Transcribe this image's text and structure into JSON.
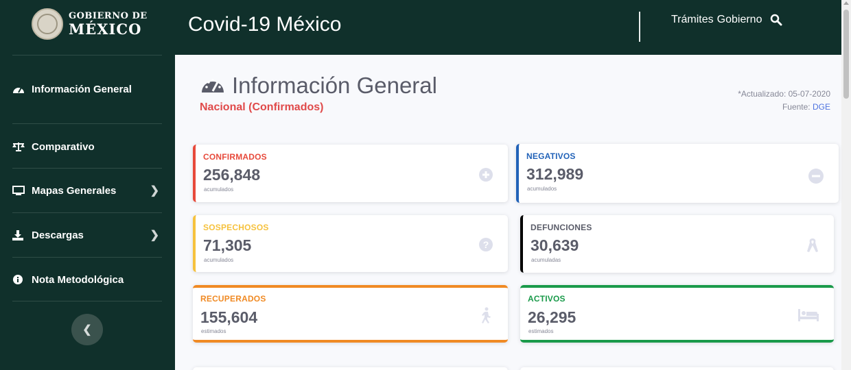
{
  "logo": {
    "line1": "GOBIERNO DE",
    "line2": "MÉXICO"
  },
  "sidebar": {
    "items": [
      {
        "label": "Información General",
        "icon": "tachometer-icon"
      },
      {
        "label": "Comparativo",
        "icon": "balance-scale-icon"
      },
      {
        "label": "Mapas Generales",
        "icon": "monitor-icon",
        "has_submenu": true
      },
      {
        "label": "Descargas",
        "icon": "download-icon",
        "has_submenu": true
      },
      {
        "label": "Nota Metodológica",
        "icon": "info-circle-icon"
      }
    ],
    "toggle_icon": "chevron-left-icon"
  },
  "header": {
    "title": "Covid-19 México",
    "links": [
      "Trámites",
      "Gobierno"
    ],
    "search_icon": "search-icon"
  },
  "page": {
    "title": "Información General",
    "subtitle": "Nacional (Confirmados)",
    "updated": "*Actualizado: 05-07-2020",
    "source_label": "Fuente:",
    "source_link": "DGE"
  },
  "cards": [
    {
      "label": "CONFIRMADOS",
      "value": "256,848",
      "sub": "acumulados",
      "color": "#e74a3b",
      "icon": "plus-circle-icon"
    },
    {
      "label": "NEGATIVOS",
      "value": "312,989",
      "sub": "acumulados",
      "color": "#2162b8",
      "icon": "minus-circle-icon"
    },
    {
      "label": "SOSPECHOSOS",
      "value": "71,305",
      "sub": "acumulados",
      "color": "#f6c23e",
      "icon": "question-circle-icon"
    },
    {
      "label": "DEFUNCIONES",
      "value": "30,639",
      "sub": "acumuladas",
      "color": "#000000",
      "icon": "ribbon-icon"
    },
    {
      "label": "RECUPERADOS",
      "value": "155,604",
      "sub": "estimados",
      "color": "#f08a24",
      "icon": "walking-icon"
    },
    {
      "label": "ACTIVOS",
      "value": "26,295",
      "sub": "estimados",
      "color": "#1a9a4a",
      "icon": "bed-icon"
    }
  ],
  "colors": {
    "sidebar_bg": "#10302b",
    "page_bg": "#f8f9fc",
    "text_gray": "#5a5c69",
    "icon_gray": "#dddfeb"
  }
}
